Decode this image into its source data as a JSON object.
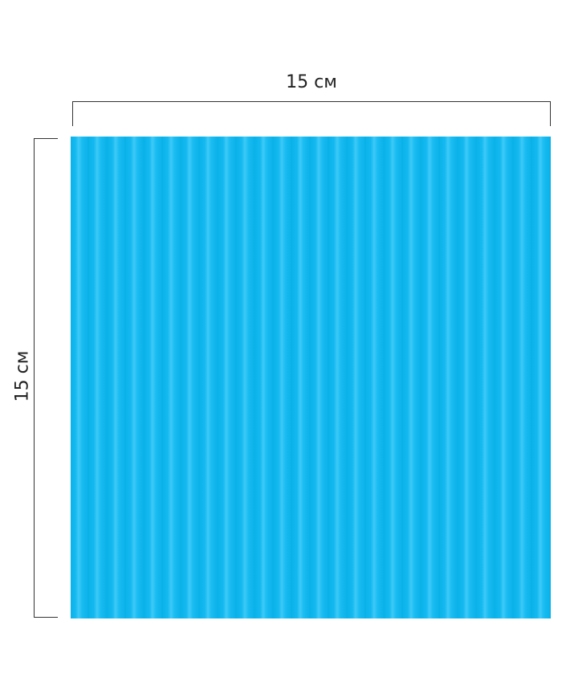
{
  "dimensions": {
    "width_label": "15 см",
    "height_label": "15 см"
  },
  "product": {
    "color": "#14b9f0",
    "pattern": "corrugated-vertical-stripes"
  }
}
